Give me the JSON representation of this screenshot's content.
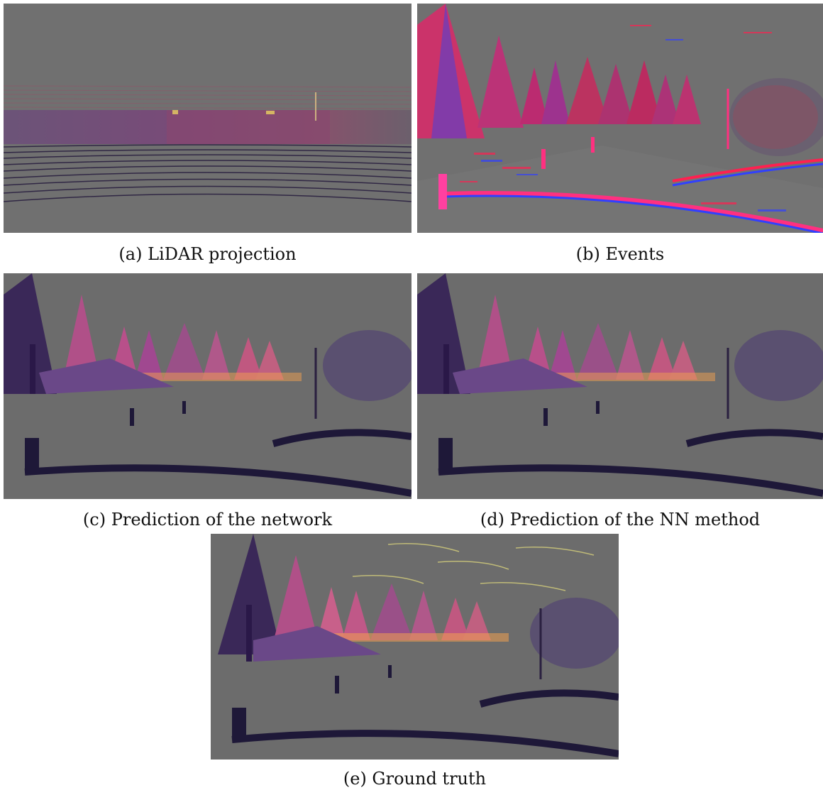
{
  "figure": {
    "panels": [
      {
        "id": "a",
        "caption": "(a) LiDAR projection",
        "kind": "lidar"
      },
      {
        "id": "b",
        "caption": "(b) Events",
        "kind": "events"
      },
      {
        "id": "c",
        "caption": "(c) Prediction of the network",
        "kind": "depth"
      },
      {
        "id": "d",
        "caption": "(d) Prediction of the NN method",
        "kind": "depth"
      },
      {
        "id": "e",
        "caption": "(e) Ground truth",
        "kind": "depth"
      }
    ]
  },
  "colors": {
    "background": "#707070",
    "event_positive": "#ff2050",
    "event_negative": "#3040ff",
    "depth_near": "#2a1450",
    "depth_mid": "#b0508a",
    "depth_far": "#f0a050",
    "depth_highlight": "#f8f080"
  }
}
